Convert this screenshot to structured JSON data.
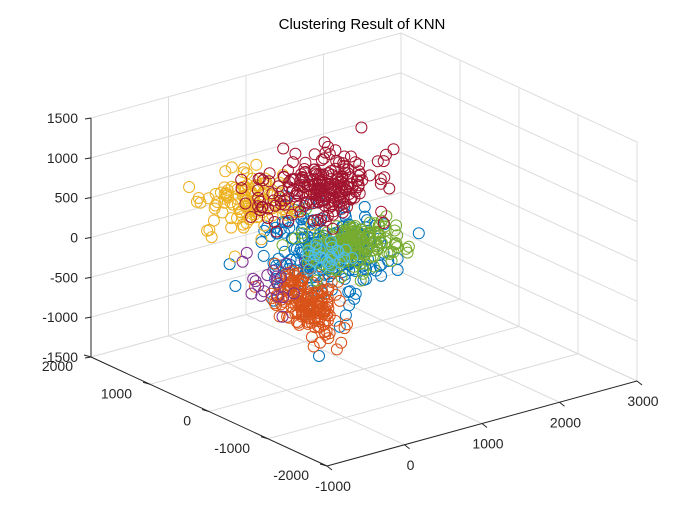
{
  "chart_data": {
    "type": "scatter",
    "projection": "3d",
    "title": "Clustering Result of KNN",
    "xlabel": "",
    "ylabel": "",
    "zlabel": "",
    "xlim": [
      -1000,
      3000
    ],
    "ylim": [
      -2000,
      2000
    ],
    "zlim": [
      -1500,
      1500
    ],
    "x_ticks": [
      "-1000",
      "0",
      "1000",
      "2000",
      "3000"
    ],
    "y_ticks": [
      "-2000",
      "-1000",
      "0",
      "1000",
      "2000"
    ],
    "z_ticks": [
      "-1500",
      "-1000",
      "-500",
      "0",
      "500",
      "1000",
      "1500"
    ],
    "grid": true,
    "legend": "none",
    "marker": "open-circle",
    "series": [
      {
        "color": "#0072BD",
        "center": [
          1350,
          1100,
          -500
        ],
        "spread": [
          700,
          800,
          450
        ],
        "count": 230
      },
      {
        "color": "#D95319",
        "center": [
          -200,
          -600,
          -150
        ],
        "spread": [
          120,
          500,
          350
        ],
        "count": 180
      },
      {
        "color": "#EDB120",
        "center": [
          200,
          900,
          500
        ],
        "spread": [
          500,
          400,
          300
        ],
        "count": 120
      },
      {
        "color": "#7E2F8E",
        "center": [
          500,
          900,
          -600
        ],
        "spread": [
          350,
          350,
          300
        ],
        "count": 20
      },
      {
        "color": "#77AC30",
        "center": [
          1700,
          1100,
          -500
        ],
        "spread": [
          600,
          400,
          250
        ],
        "count": 200
      },
      {
        "color": "#4DBEEE",
        "center": [
          900,
          500,
          -200
        ],
        "spread": [
          300,
          200,
          150
        ],
        "count": 25
      },
      {
        "color": "#A2142F",
        "center": [
          1200,
          1000,
          400
        ],
        "spread": [
          700,
          500,
          300
        ],
        "count": 230
      }
    ]
  }
}
